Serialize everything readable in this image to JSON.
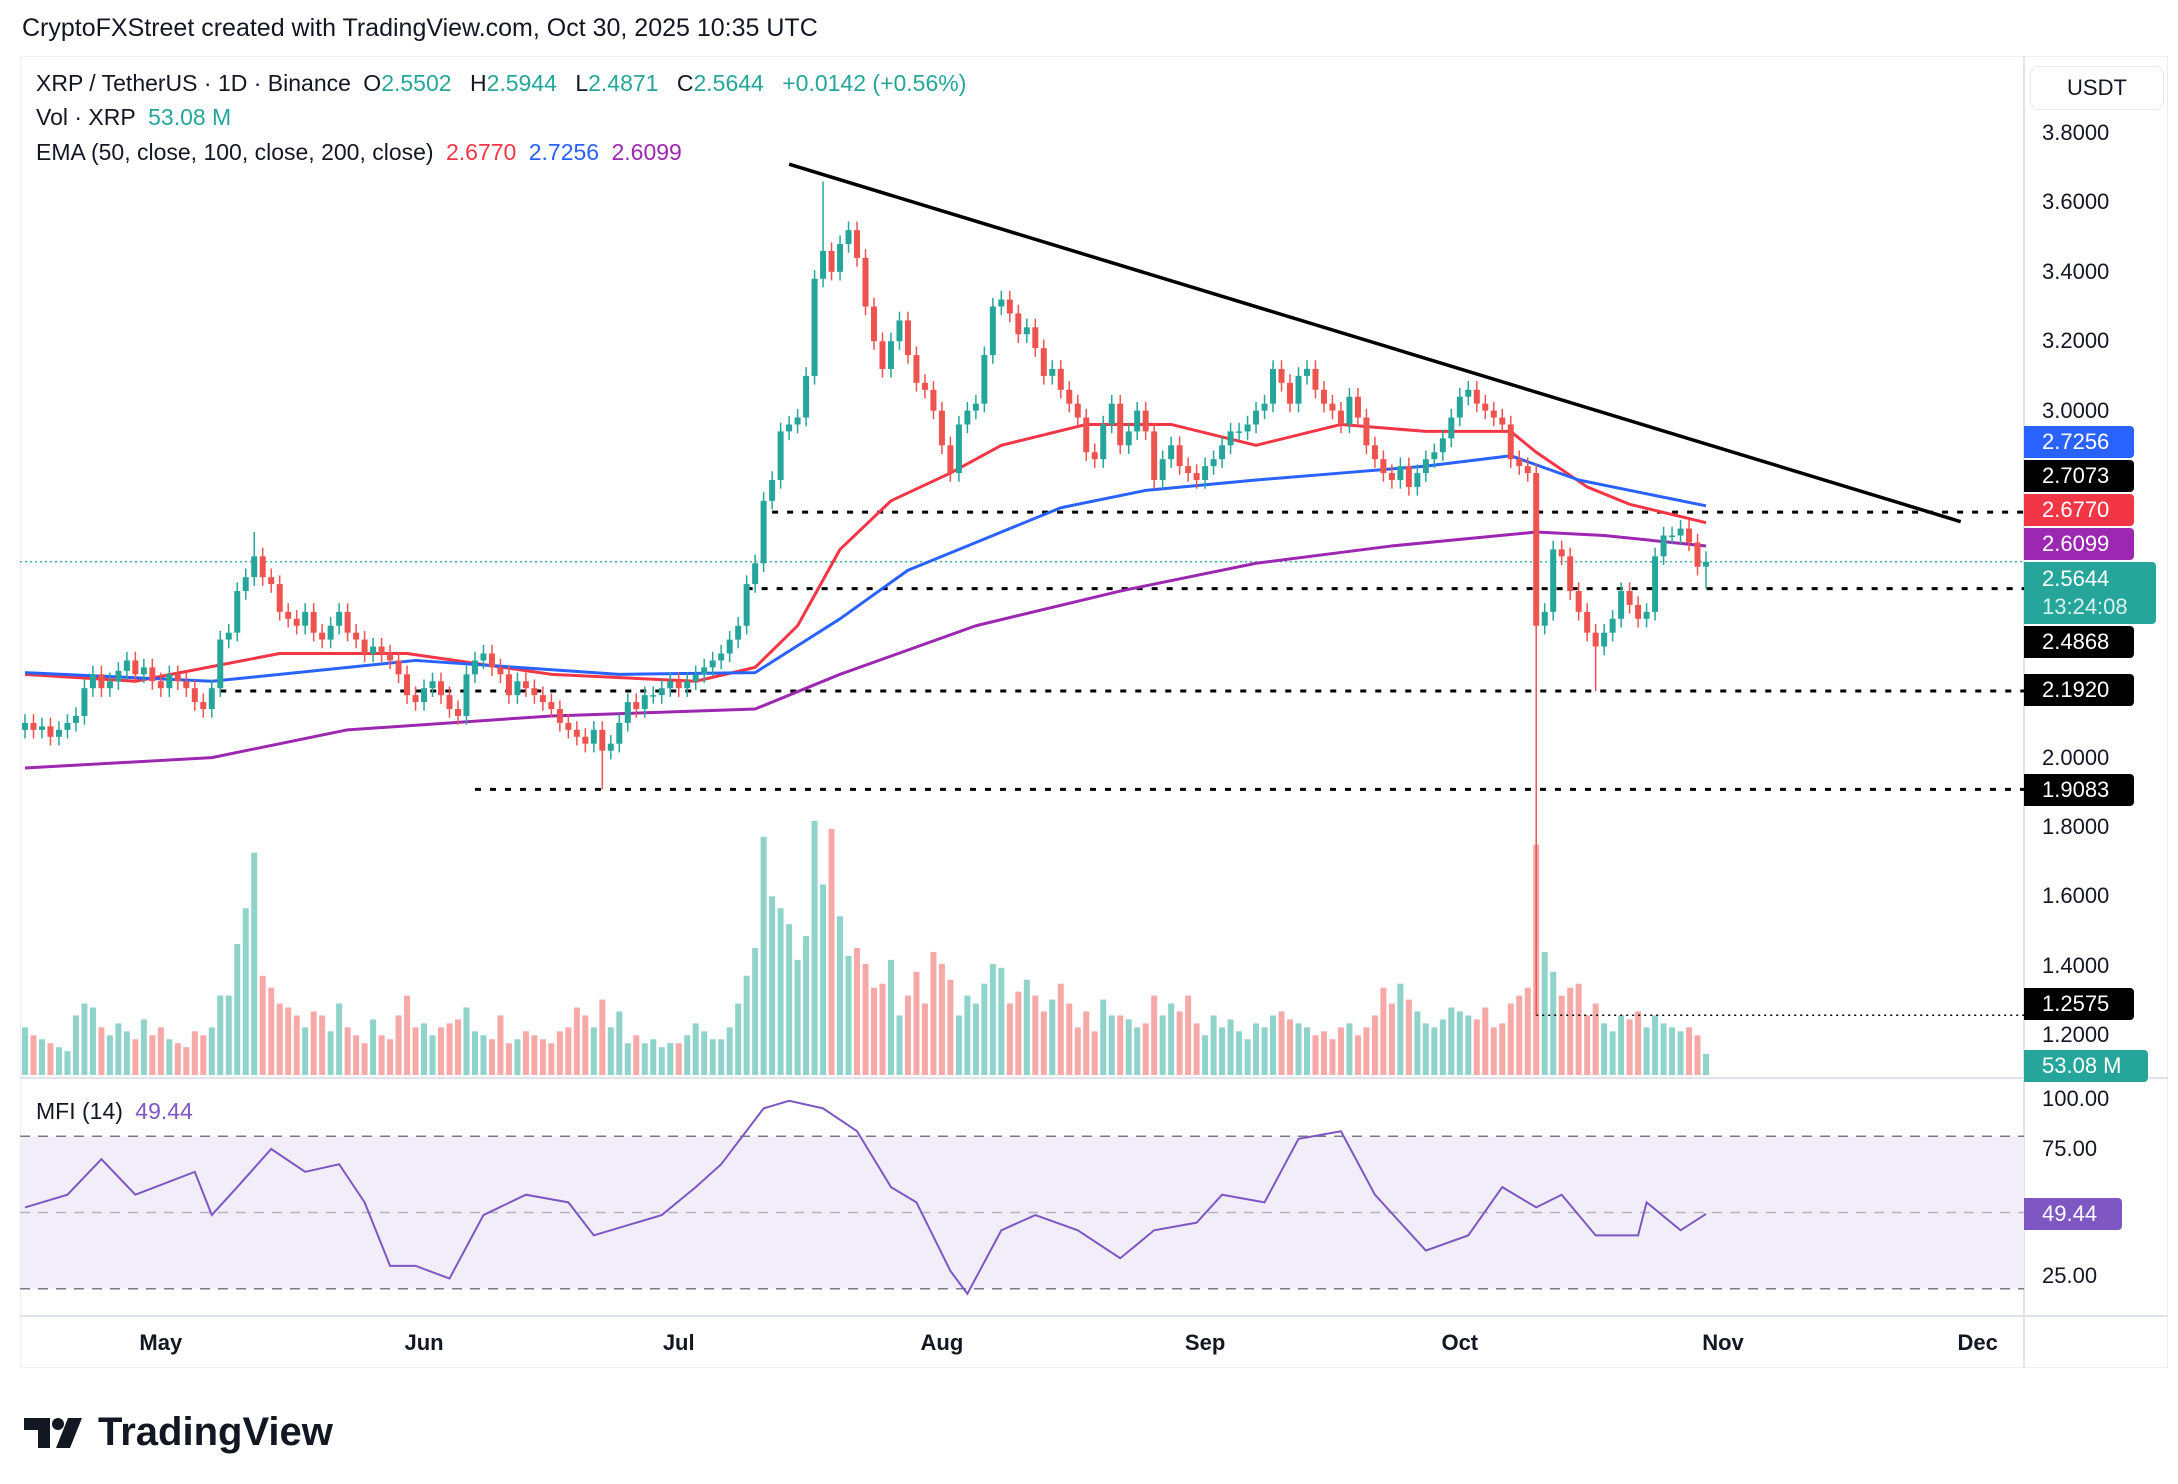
{
  "credit": "CryptoFXStreet created with TradingView.com, Oct 30, 2025 10:35 UTC",
  "legend": {
    "symbol": "XRP / TetherUS · 1D · Binance",
    "o_label": "O",
    "o": "2.5502",
    "h_label": "H",
    "h": "2.5944",
    "l_label": "L",
    "l": "2.4871",
    "c_label": "C",
    "c": "2.5644",
    "change": "+0.0142 (+0.56%)",
    "vol_label": "Vol · XRP",
    "vol": "53.08 M",
    "ema_label": "EMA (50, close, 100, close, 200, close)",
    "ema50": "2.6770",
    "ema100": "2.7256",
    "ema200": "2.6099",
    "mfi_label": "MFI (14)",
    "mfi": "49.44"
  },
  "currency_button": "USDT",
  "logo_text": "TradingView",
  "colors": {
    "up": "#26a69a",
    "down": "#ef5350",
    "ema50": "#f23645",
    "ema100": "#2962ff",
    "ema200": "#9c27b0",
    "mfi": "#7e57c2",
    "trendline": "#000000"
  },
  "chart_data": {
    "type": "candlestick",
    "title": "XRP / TetherUS · 1D · Binance",
    "start_date": "2025-04-15",
    "price_axis": {
      "unit": "USDT",
      "ylim": [
        1.15,
        3.9
      ],
      "ticks": [
        "3.8000",
        "3.6000",
        "3.4000",
        "3.2000",
        "3.0000",
        "2.0000",
        "1.8000",
        "1.6000",
        "1.4000",
        "1.2000"
      ]
    },
    "time_axis": {
      "ticks": [
        {
          "label": "May",
          "date": "2025-05-01"
        },
        {
          "label": "Jun",
          "date": "2025-06-01"
        },
        {
          "label": "Jul",
          "date": "2025-07-01"
        },
        {
          "label": "Aug",
          "date": "2025-08-01"
        },
        {
          "label": "Sep",
          "date": "2025-09-01"
        },
        {
          "label": "Oct",
          "date": "2025-10-01"
        },
        {
          "label": "Nov",
          "date": "2025-11-01"
        },
        {
          "label": "Dec",
          "date": "2025-12-01"
        }
      ]
    },
    "closes": [
      2.1,
      2.08,
      2.09,
      2.06,
      2.08,
      2.1,
      2.12,
      2.2,
      2.24,
      2.2,
      2.22,
      2.25,
      2.28,
      2.24,
      2.26,
      2.22,
      2.2,
      2.24,
      2.22,
      2.2,
      2.16,
      2.14,
      2.2,
      2.34,
      2.36,
      2.48,
      2.52,
      2.58,
      2.52,
      2.5,
      2.42,
      2.4,
      2.38,
      2.42,
      2.36,
      2.34,
      2.38,
      2.42,
      2.36,
      2.34,
      2.3,
      2.32,
      2.3,
      2.28,
      2.24,
      2.18,
      2.16,
      2.2,
      2.22,
      2.18,
      2.14,
      2.12,
      2.24,
      2.28,
      2.3,
      2.26,
      2.24,
      2.18,
      2.22,
      2.2,
      2.18,
      2.16,
      2.14,
      2.1,
      2.08,
      2.06,
      2.04,
      2.08,
      2.02,
      2.04,
      2.1,
      2.16,
      2.14,
      2.18,
      2.18,
      2.2,
      2.22,
      2.2,
      2.22,
      2.24,
      2.26,
      2.28,
      2.3,
      2.34,
      2.38,
      2.5,
      2.56,
      2.74,
      2.8,
      2.94,
      2.96,
      2.98,
      3.1,
      3.38,
      3.46,
      3.4,
      3.48,
      3.52,
      3.44,
      3.3,
      3.2,
      3.12,
      3.2,
      3.26,
      3.16,
      3.08,
      3.06,
      3.0,
      2.9,
      2.82,
      2.96,
      3.0,
      3.02,
      3.16,
      3.3,
      3.32,
      3.28,
      3.22,
      3.24,
      3.18,
      3.1,
      3.12,
      3.06,
      3.02,
      2.98,
      2.88,
      2.86,
      2.96,
      3.02,
      2.9,
      2.94,
      3.0,
      2.94,
      2.8,
      2.86,
      2.9,
      2.84,
      2.82,
      2.8,
      2.84,
      2.86,
      2.9,
      2.94,
      2.94,
      2.96,
      3.0,
      3.02,
      3.12,
      3.08,
      3.02,
      3.1,
      3.12,
      3.06,
      3.02,
      3.0,
      2.96,
      3.04,
      2.98,
      2.9,
      2.86,
      2.82,
      2.8,
      2.84,
      2.78,
      2.82,
      2.86,
      2.88,
      2.92,
      2.98,
      3.04,
      3.06,
      3.02,
      3.0,
      2.98,
      2.96,
      2.86,
      2.84,
      2.82,
      2.38,
      2.42,
      2.6,
      2.58,
      2.48,
      2.42,
      2.36,
      2.32,
      2.36,
      2.4,
      2.48,
      2.44,
      2.4,
      2.42,
      2.58,
      2.64,
      2.64,
      2.66,
      2.62,
      2.55,
      2.5644
    ],
    "last_candle": {
      "open": 2.5502,
      "high": 2.5944,
      "low": 2.4871,
      "close": 2.5644
    },
    "extremes": [
      {
        "date": "2025-10-10",
        "low": 1.2575
      },
      {
        "date": "2025-06-22",
        "low": 1.9083
      },
      {
        "date": "2025-07-18",
        "high": 3.66
      },
      {
        "date": "2025-05-12",
        "high": 2.65
      },
      {
        "date": "2025-10-17",
        "low": 2.192
      }
    ],
    "volume_millions": [
      120,
      100,
      90,
      80,
      70,
      60,
      150,
      180,
      170,
      120,
      100,
      130,
      110,
      90,
      140,
      100,
      120,
      90,
      80,
      70,
      110,
      100,
      120,
      200,
      200,
      330,
      420,
      560,
      250,
      220,
      180,
      170,
      150,
      120,
      160,
      150,
      110,
      180,
      120,
      100,
      80,
      140,
      100,
      90,
      150,
      200,
      120,
      130,
      100,
      120,
      130,
      140,
      170,
      110,
      100,
      90,
      150,
      80,
      90,
      110,
      100,
      90,
      80,
      110,
      120,
      170,
      150,
      120,
      190,
      120,
      160,
      80,
      100,
      80,
      90,
      70,
      80,
      80,
      100,
      130,
      110,
      90,
      90,
      120,
      180,
      250,
      320,
      600,
      450,
      420,
      380,
      290,
      350,
      640,
      480,
      620,
      400,
      300,
      320,
      280,
      220,
      230,
      290,
      150,
      200,
      260,
      180,
      310,
      280,
      240,
      150,
      200,
      180,
      230,
      280,
      270,
      180,
      210,
      240,
      200,
      160,
      190,
      230,
      180,
      120,
      160,
      110,
      190,
      150,
      150,
      140,
      120,
      130,
      200,
      150,
      180,
      160,
      200,
      130,
      100,
      150,
      120,
      140,
      110,
      90,
      130,
      120,
      150,
      160,
      140,
      130,
      120,
      100,
      110,
      90,
      120,
      130,
      100,
      120,
      150,
      220,
      180,
      230,
      190,
      160,
      130,
      120,
      140,
      170,
      160,
      150,
      140,
      170,
      120,
      130,
      180,
      200,
      220,
      580,
      310,
      260,
      200,
      220,
      230,
      150,
      180,
      130,
      110,
      150,
      140,
      160,
      120,
      150,
      130,
      120,
      110,
      120,
      100,
      53.08
    ],
    "ema": [
      {
        "name": "EMA 50",
        "color": "#f23645",
        "points": [
          [
            "2025-04-15",
            2.24
          ],
          [
            "2025-04-28",
            2.22
          ],
          [
            "2025-05-15",
            2.3
          ],
          [
            "2025-05-30",
            2.3
          ],
          [
            "2025-06-16",
            2.24
          ],
          [
            "2025-07-03",
            2.22
          ],
          [
            "2025-07-10",
            2.26
          ],
          [
            "2025-07-15",
            2.38
          ],
          [
            "2025-07-20",
            2.6
          ],
          [
            "2025-07-26",
            2.74
          ],
          [
            "2025-08-02",
            2.82
          ],
          [
            "2025-08-08",
            2.9
          ],
          [
            "2025-08-18",
            2.96
          ],
          [
            "2025-08-28",
            2.96
          ],
          [
            "2025-09-07",
            2.9
          ],
          [
            "2025-09-17",
            2.96
          ],
          [
            "2025-09-27",
            2.94
          ],
          [
            "2025-10-07",
            2.94
          ],
          [
            "2025-10-10",
            2.88
          ],
          [
            "2025-10-16",
            2.78
          ],
          [
            "2025-10-21",
            2.73
          ],
          [
            "2025-10-30",
            2.677
          ]
        ]
      },
      {
        "name": "EMA 100",
        "color": "#2962ff",
        "points": [
          [
            "2025-04-15",
            2.245
          ],
          [
            "2025-05-07",
            2.22
          ],
          [
            "2025-05-31",
            2.28
          ],
          [
            "2025-06-24",
            2.24
          ],
          [
            "2025-07-10",
            2.245
          ],
          [
            "2025-07-20",
            2.4
          ],
          [
            "2025-07-28",
            2.54
          ],
          [
            "2025-08-05",
            2.62
          ],
          [
            "2025-08-15",
            2.72
          ],
          [
            "2025-08-25",
            2.77
          ],
          [
            "2025-09-07",
            2.8
          ],
          [
            "2025-09-17",
            2.82
          ],
          [
            "2025-09-27",
            2.84
          ],
          [
            "2025-10-07",
            2.87
          ],
          [
            "2025-10-15",
            2.8
          ],
          [
            "2025-10-30",
            2.7256
          ]
        ]
      },
      {
        "name": "EMA 200",
        "color": "#9c27b0",
        "points": [
          [
            "2025-04-15",
            1.97
          ],
          [
            "2025-05-07",
            2.0
          ],
          [
            "2025-05-23",
            2.08
          ],
          [
            "2025-06-16",
            2.12
          ],
          [
            "2025-07-10",
            2.14
          ],
          [
            "2025-07-20",
            2.24
          ],
          [
            "2025-08-05",
            2.38
          ],
          [
            "2025-08-22",
            2.48
          ],
          [
            "2025-09-07",
            2.56
          ],
          [
            "2025-09-23",
            2.61
          ],
          [
            "2025-10-10",
            2.65
          ],
          [
            "2025-10-18",
            2.64
          ],
          [
            "2025-10-30",
            2.6099
          ]
        ]
      }
    ],
    "trendline": {
      "from": [
        "2025-07-14",
        3.71
      ],
      "to": [
        "2025-11-29",
        2.68
      ]
    },
    "levels": [
      {
        "value": 2.7073,
        "label": "2.7073",
        "from": "2025-07-12",
        "style": "dotted"
      },
      {
        "value": 2.4868,
        "label": "2.4868",
        "from": "2025-07-09",
        "style": "dotted"
      },
      {
        "value": 2.192,
        "label": "2.1920",
        "from": "2025-05-08",
        "style": "dotted"
      },
      {
        "value": 1.9083,
        "label": "1.9083",
        "from": "2025-06-07",
        "style": "dotted"
      },
      {
        "value": 1.2575,
        "label": "1.2575",
        "from": "2025-10-10",
        "style": "fine-dotted"
      }
    ],
    "axis_labels": [
      {
        "label": "2.7256",
        "color": "#2962ff"
      },
      {
        "label": "2.7073",
        "color": "#000000"
      },
      {
        "label": "2.6770",
        "color": "#f23645"
      },
      {
        "label": "2.6099",
        "color": "#9c27b0"
      },
      {
        "label": "2.5644",
        "sub": "13:24:08",
        "color": "#26a69a"
      },
      {
        "label": "2.4868",
        "color": "#000000"
      },
      {
        "label": "2.1920",
        "color": "#000000"
      },
      {
        "label": "1.9083",
        "color": "#000000"
      },
      {
        "label": "1.2575",
        "color": "#000000"
      },
      {
        "label": "53.08 M",
        "color": "#26a69a"
      }
    ],
    "mfi": {
      "period": 14,
      "ylim": [
        0,
        100
      ],
      "band": [
        20,
        80
      ],
      "ticks": [
        "100.00",
        "75.00",
        "25.00"
      ],
      "current": "49.44",
      "points": [
        [
          "2025-04-15",
          52
        ],
        [
          "2025-04-20",
          57
        ],
        [
          "2025-04-24",
          71
        ],
        [
          "2025-04-28",
          57
        ],
        [
          "2025-05-05",
          66
        ],
        [
          "2025-05-07",
          49
        ],
        [
          "2025-05-10",
          60
        ],
        [
          "2025-05-14",
          75
        ],
        [
          "2025-05-18",
          66
        ],
        [
          "2025-05-22",
          69
        ],
        [
          "2025-05-25",
          54
        ],
        [
          "2025-05-28",
          29
        ],
        [
          "2025-05-31",
          29
        ],
        [
          "2025-06-04",
          24
        ],
        [
          "2025-06-08",
          49
        ],
        [
          "2025-06-13",
          57
        ],
        [
          "2025-06-18",
          54
        ],
        [
          "2025-06-21",
          41
        ],
        [
          "2025-06-29",
          49
        ],
        [
          "2025-07-03",
          60
        ],
        [
          "2025-07-06",
          69
        ],
        [
          "2025-07-11",
          91
        ],
        [
          "2025-07-14",
          94
        ],
        [
          "2025-07-18",
          91
        ],
        [
          "2025-07-22",
          82
        ],
        [
          "2025-07-26",
          60
        ],
        [
          "2025-07-29",
          54
        ],
        [
          "2025-08-02",
          27
        ],
        [
          "2025-08-04",
          18
        ],
        [
          "2025-08-08",
          43
        ],
        [
          "2025-08-12",
          49
        ],
        [
          "2025-08-17",
          43
        ],
        [
          "2025-08-22",
          32
        ],
        [
          "2025-08-26",
          43
        ],
        [
          "2025-08-31",
          46
        ],
        [
          "2025-09-03",
          57
        ],
        [
          "2025-09-08",
          54
        ],
        [
          "2025-09-12",
          79
        ],
        [
          "2025-09-17",
          82
        ],
        [
          "2025-09-21",
          57
        ],
        [
          "2025-09-27",
          35
        ],
        [
          "2025-10-02",
          41
        ],
        [
          "2025-10-06",
          60
        ],
        [
          "2025-10-10",
          52
        ],
        [
          "2025-10-13",
          57
        ],
        [
          "2025-10-17",
          41
        ],
        [
          "2025-10-22",
          41
        ],
        [
          "2025-10-23",
          54
        ],
        [
          "2025-10-27",
          43
        ],
        [
          "2025-10-30",
          49.44
        ]
      ]
    }
  }
}
